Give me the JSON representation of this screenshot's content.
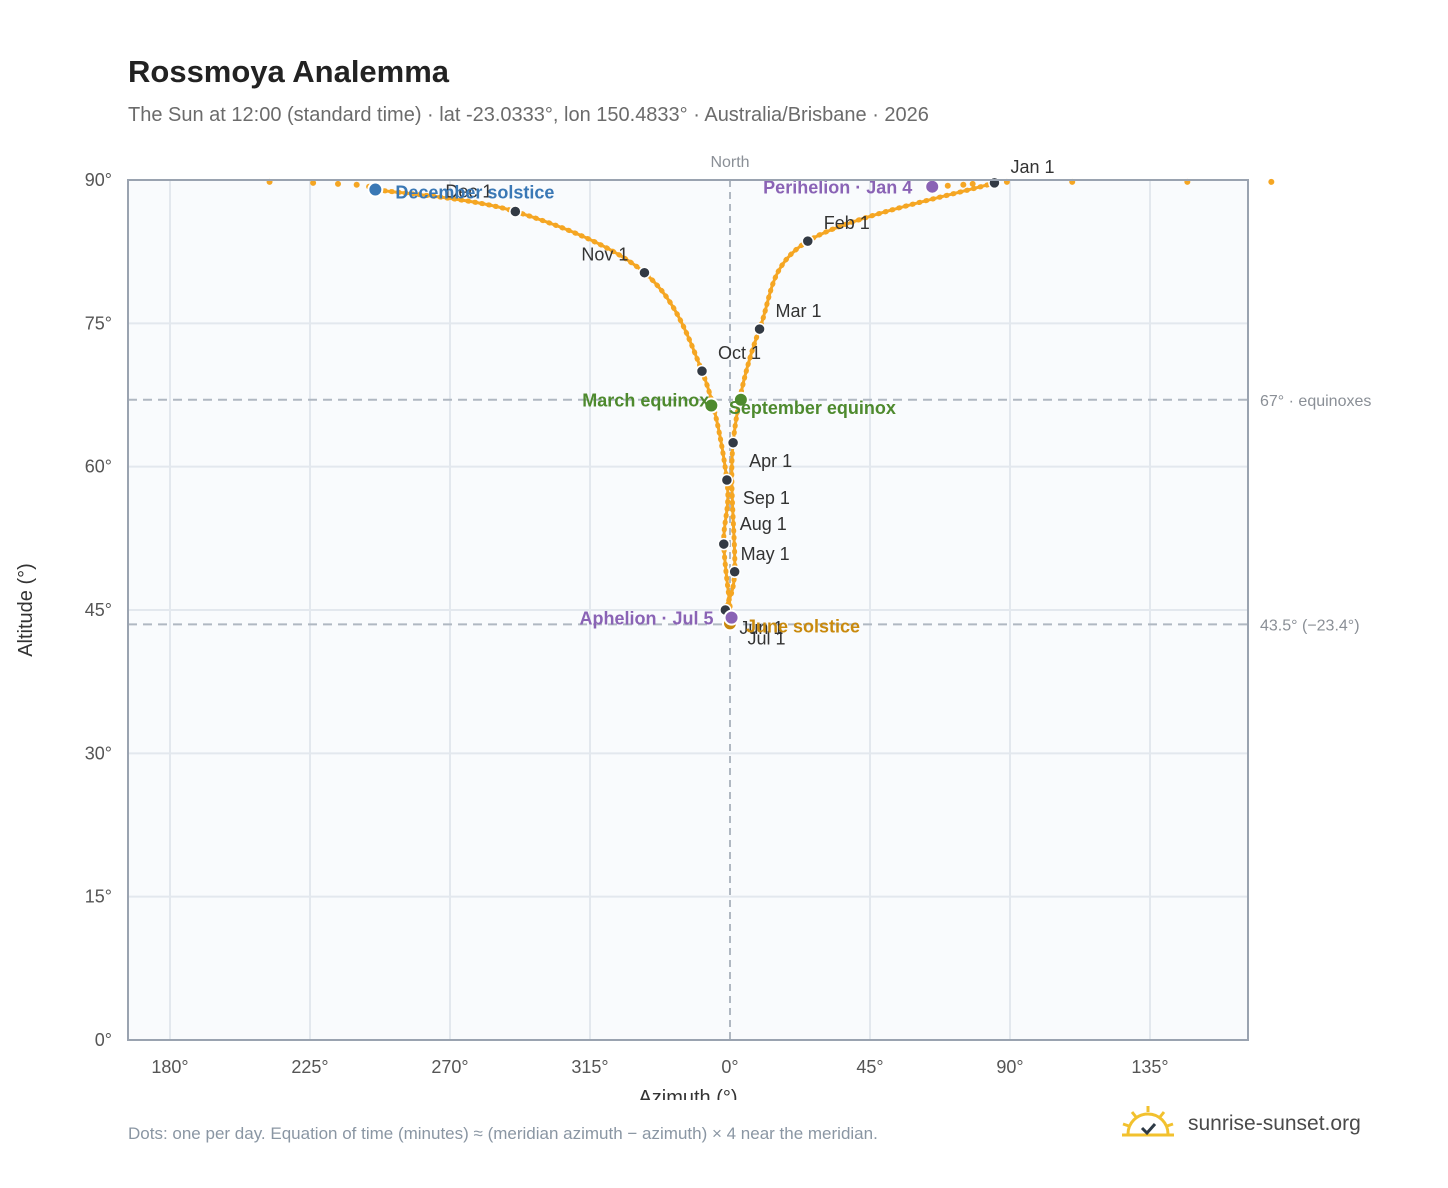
{
  "title": "Rossmoya Analemma",
  "subtitle": "The Sun at 12:00 (standard time) · lat -23.0333°, lon 150.4833° · Australia/Brisbane · 2026",
  "footnote": "Dots: one per day. Equation of time (minutes) ≈ (meridian azimuth − azimuth) × 4 near the meridian.",
  "brand": {
    "name": "sunrise-sunset.org",
    "icon": "sun-logo-icon"
  },
  "colors": {
    "curve": "#f5a623",
    "month_dot": "#333a44",
    "solstice_dec": "#3a78b5",
    "solstice_jun": "#c98a0e",
    "equinox": "#4e8a2e",
    "apsis": "#8a63b5",
    "plot_bg": "#f9fbfd",
    "grid": "#e3e8ee",
    "frame": "#9aa3b0",
    "ref_line": "#b0b8c2"
  },
  "chart_data": {
    "type": "scatter",
    "title": "Rossmoya Analemma",
    "xlabel": "Azimuth (°)",
    "ylabel": "Altitude (°)",
    "ylim": [
      0,
      90
    ],
    "xlim_note": "azimuth axis centred on 0° (North), wrapping from 180° through 270°, 315°, 0° to 135°",
    "x_ticks": [
      "180°",
      "225°",
      "270°",
      "315°",
      "0°",
      "45°",
      "90°",
      "135°"
    ],
    "y_ticks": [
      "0°",
      "15°",
      "30°",
      "45°",
      "60°",
      "75°",
      "90°"
    ],
    "grid": true,
    "center_line_label": "North",
    "reference_lines": [
      {
        "altitude": 67.0,
        "label": "67° · equinoxes"
      },
      {
        "altitude": 43.5,
        "label": "43.5° (−23.4°)"
      }
    ],
    "month_points": [
      {
        "label": "Jan 1",
        "azimuth": 85.0,
        "altitude": 89.7
      },
      {
        "label": "Feb 1",
        "azimuth": 25.0,
        "altitude": 83.6
      },
      {
        "label": "Mar 1",
        "azimuth": 9.5,
        "altitude": 74.4
      },
      {
        "label": "Apr 1",
        "azimuth": 1.0,
        "altitude": 62.5
      },
      {
        "label": "May 1",
        "azimuth": 1.5,
        "altitude": 49.0
      },
      {
        "label": "Jun 1",
        "azimuth": -1.5,
        "altitude": 45.0
      },
      {
        "label": "Jul 1",
        "azimuth": 0.5,
        "altitude": 43.7
      },
      {
        "label": "Aug 1",
        "azimuth": -2.0,
        "altitude": 51.9
      },
      {
        "label": "Sep 1",
        "azimuth": -1.0,
        "altitude": 58.6
      },
      {
        "label": "Oct 1",
        "azimuth": -9.0,
        "altitude": 70.0
      },
      {
        "label": "Nov 1",
        "azimuth": -27.5,
        "altitude": 80.3
      },
      {
        "label": "Dec 1",
        "azimuth": -69.0,
        "altitude": 86.7
      }
    ],
    "events": [
      {
        "label": "December solstice",
        "kind": "solstice_dec",
        "azimuth": -114.0,
        "altitude": 89.0
      },
      {
        "label": "June solstice",
        "kind": "solstice_jun",
        "azimuth": 0.0,
        "altitude": 43.6
      },
      {
        "label": "March equinox",
        "kind": "equinox",
        "azimuth": -6.0,
        "altitude": 66.4
      },
      {
        "label": "September equinox",
        "kind": "equinox",
        "azimuth": 3.5,
        "altitude": 67.0
      },
      {
        "label": "Perihelion · Jan 4",
        "kind": "apsis",
        "azimuth": 65.0,
        "altitude": 89.3
      },
      {
        "label": "Aphelion · Jul 5",
        "kind": "apsis",
        "azimuth": 0.5,
        "altitude": 44.2
      }
    ],
    "near_zenith_dots": [
      {
        "azimuth": 174,
        "altitude": 89.8
      },
      {
        "azimuth": -148,
        "altitude": 89.8
      },
      {
        "azimuth": -134,
        "altitude": 89.7
      },
      {
        "azimuth": -126,
        "altitude": 89.6
      },
      {
        "azimuth": -120,
        "altitude": 89.5
      },
      {
        "azimuth": -116,
        "altitude": 89.3
      },
      {
        "azimuth": 70,
        "altitude": 89.4
      },
      {
        "azimuth": 75,
        "altitude": 89.5
      },
      {
        "azimuth": 78,
        "altitude": 89.6
      },
      {
        "azimuth": 89,
        "altitude": 89.8
      },
      {
        "azimuth": 110,
        "altitude": 89.8
      },
      {
        "azimuth": 147,
        "altitude": 89.8
      }
    ]
  }
}
